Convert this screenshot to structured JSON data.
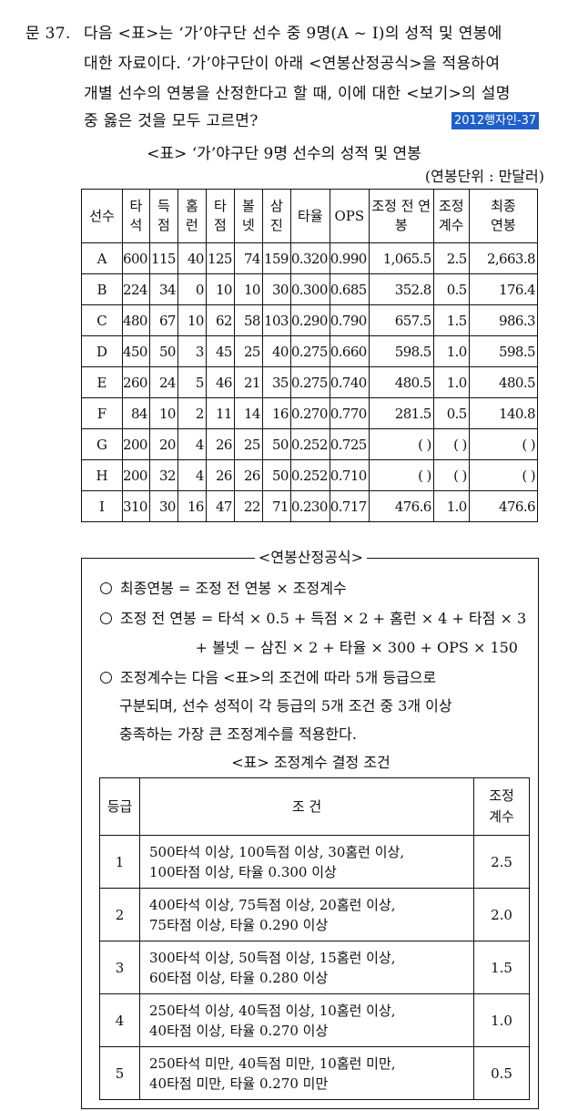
{
  "question": {
    "number": "문 37.",
    "lines": [
      "다음 <표>는 ‘가’야구단 선수 중 9명(A ~ I)의 성적 및 연봉에",
      "대한 자료이다. ‘가’야구단이 아래 <연봉산정공식>을 적용하여",
      "개별 선수의 연봉을 산정한다고 할 때, 이에 대한 <보기>의 설명",
      "중 옳은 것을 모두 고르면?"
    ],
    "tag": "2012행자인-37"
  },
  "table1": {
    "caption": "<표> ‘가’야구단 9명 선수의 성적 및 연봉",
    "unit": "(연봉단위 : 만달러)",
    "headers": [
      "선수",
      "타석",
      "득점",
      "홈런",
      "타점",
      "볼넷",
      "삼진",
      "타율",
      "OPS",
      "조정 전 연봉",
      "조정계수",
      "최종연봉"
    ],
    "rows": [
      [
        "A",
        "600",
        "115",
        "40",
        "125",
        "74",
        "159",
        "0.320",
        "0.990",
        "1,065.5",
        "2.5",
        "2,663.8"
      ],
      [
        "B",
        "224",
        "34",
        "0",
        "10",
        "10",
        "30",
        "0.300",
        "0.685",
        "352.8",
        "0.5",
        "176.4"
      ],
      [
        "C",
        "480",
        "67",
        "10",
        "62",
        "58",
        "103",
        "0.290",
        "0.790",
        "657.5",
        "1.5",
        "986.3"
      ],
      [
        "D",
        "450",
        "50",
        "3",
        "45",
        "25",
        "40",
        "0.275",
        "0.660",
        "598.5",
        "1.0",
        "598.5"
      ],
      [
        "E",
        "260",
        "24",
        "5",
        "46",
        "21",
        "35",
        "0.275",
        "0.740",
        "480.5",
        "1.0",
        "480.5"
      ],
      [
        "F",
        "84",
        "10",
        "2",
        "11",
        "14",
        "16",
        "0.270",
        "0.770",
        "281.5",
        "0.5",
        "140.8"
      ],
      [
        "G",
        "200",
        "20",
        "4",
        "26",
        "25",
        "50",
        "0.252",
        "0.725",
        "(     )",
        "(  )",
        "(     )"
      ],
      [
        "H",
        "200",
        "32",
        "4",
        "26",
        "26",
        "50",
        "0.252",
        "0.710",
        "(     )",
        "(  )",
        "(     )"
      ],
      [
        "I",
        "310",
        "30",
        "16",
        "47",
        "22",
        "71",
        "0.230",
        "0.717",
        "476.6",
        "1.0",
        "476.6"
      ]
    ]
  },
  "formula_box": {
    "title": "<연봉산정공식>",
    "item1": "최종연봉 = 조정 전 연봉 × 조정계수",
    "item2_line1": "조정 전 연봉 = 타석 × 0.5 + 득점 × 2 + 홈런 × 4 + 타점 × 3",
    "item2_line2": "+ 볼넷 − 삼진 × 2 + 타율 × 300 + OPS × 150",
    "item3_line1": "조정계수는 다음 <표>의 조건에 따라 5개 등급으로",
    "item3_line2": "구분되며, 선수 성적이 각 등급의 5개 조건 중 3개 이상",
    "item3_line3": "충족하는 가장 큰 조정계수를 적용한다.",
    "table2_caption": "<표> 조정계수 결정 조건",
    "table2_headers": [
      "등급",
      "조 건",
      "조정계수"
    ],
    "table2_rows": [
      {
        "grade": "1",
        "cond1": "500타석 이상, 100득점 이상, 30홈런 이상,",
        "cond2": "100타점 이상, 타율 0.300 이상",
        "coef": "2.5"
      },
      {
        "grade": "2",
        "cond1": "400타석 이상, 75득점 이상, 20홈런 이상,",
        "cond2": "75타점 이상, 타율 0.290 이상",
        "coef": "2.0"
      },
      {
        "grade": "3",
        "cond1": "300타석 이상, 50득점 이상, 15홈런 이상,",
        "cond2": "60타점 이상, 타율 0.280 이상",
        "coef": "1.5"
      },
      {
        "grade": "4",
        "cond1": "250타석 이상, 40득점 이상, 10홈런 이상,",
        "cond2": "40타점 이상, 타율 0.270 이상",
        "coef": "1.0"
      },
      {
        "grade": "5",
        "cond1": "250타석 미만, 40득점 미만, 10홈런 미만,",
        "cond2": "40타점 미만, 타율 0.270 미만",
        "coef": "0.5"
      }
    ]
  }
}
